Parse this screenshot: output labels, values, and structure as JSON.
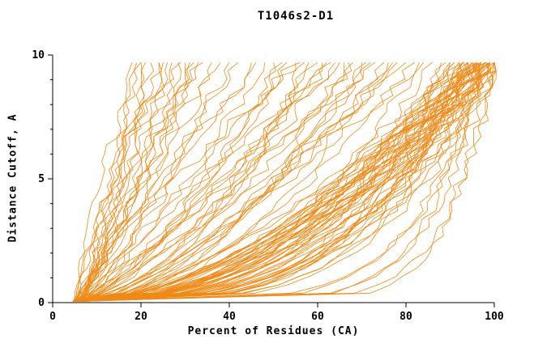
{
  "chart_data": {
    "type": "line",
    "title": "T1046s2-D1",
    "xlabel": "Percent of Residues (CA)",
    "ylabel": "Distance Cutoff, A",
    "xlim": [
      0,
      100
    ],
    "ylim": [
      0,
      10
    ],
    "x_ticks": [
      0,
      20,
      40,
      60,
      80,
      100
    ],
    "y_ticks": [
      0,
      5,
      10
    ],
    "y_minor_ticks": [
      1,
      2,
      3,
      4,
      6,
      7,
      8,
      9
    ],
    "line_color": "#EF8A17",
    "axis_color": "#000000",
    "y_start": 0.05,
    "y_top": 9.7,
    "x_start_range": [
      4.5,
      7.5
    ],
    "samples_per_curve": 30,
    "jitter_amplitude": 1.3,
    "jitter_seed": 1234,
    "curves_note": "each curve = [x_percent_reached_at_top_cutoff, shape_exponent]; x(t)=x0+(xend-x0)*t^shape, t=y/9.7",
    "curves": [
      [
        100,
        0.3
      ],
      [
        99,
        0.45
      ],
      [
        98,
        0.38
      ],
      [
        100,
        0.52
      ],
      [
        97,
        0.33
      ],
      [
        96,
        0.47
      ],
      [
        99,
        0.28
      ],
      [
        95,
        0.55
      ],
      [
        98,
        0.42
      ],
      [
        100,
        0.36
      ],
      [
        94,
        0.5
      ],
      [
        97,
        0.44
      ],
      [
        96,
        0.31
      ],
      [
        99,
        0.58
      ],
      [
        95,
        0.4
      ],
      [
        98,
        0.27
      ],
      [
        93,
        0.48
      ],
      [
        100,
        0.43
      ],
      [
        97,
        0.54
      ],
      [
        96,
        0.36
      ],
      [
        94,
        0.29
      ],
      [
        99,
        0.49
      ],
      [
        95,
        0.33
      ],
      [
        98,
        0.56
      ],
      [
        93,
        0.41
      ],
      [
        100,
        0.26
      ],
      [
        96,
        0.52
      ],
      [
        97,
        0.38
      ],
      [
        94,
        0.45
      ],
      [
        99,
        0.32
      ],
      [
        92,
        0.47
      ],
      [
        95,
        0.59
      ],
      [
        98,
        0.35
      ],
      [
        93,
        0.28
      ],
      [
        100,
        0.5
      ],
      [
        96,
        0.42
      ],
      [
        91,
        0.37
      ],
      [
        97,
        0.61
      ],
      [
        94,
        0.34
      ],
      [
        99,
        0.46
      ],
      [
        92,
        0.55
      ],
      [
        95,
        0.3
      ],
      [
        90,
        0.44
      ],
      [
        98,
        0.51
      ],
      [
        93,
        0.39
      ],
      [
        96,
        0.63
      ],
      [
        91,
        0.48
      ],
      [
        100,
        0.34
      ],
      [
        89,
        0.41
      ],
      [
        94,
        0.57
      ],
      [
        88,
        0.36
      ],
      [
        97,
        0.29
      ],
      [
        90,
        0.53
      ],
      [
        92,
        0.62
      ],
      [
        86,
        0.45
      ],
      [
        82,
        0.55
      ],
      [
        78,
        0.7
      ],
      [
        75,
        0.48
      ],
      [
        80,
        0.85
      ],
      [
        72,
        0.6
      ],
      [
        68,
        0.75
      ],
      [
        83,
        0.4
      ],
      [
        65,
        0.9
      ],
      [
        70,
        0.52
      ],
      [
        76,
        0.66
      ],
      [
        62,
        0.8
      ],
      [
        58,
        0.58
      ],
      [
        73,
        1.0
      ],
      [
        66,
        0.45
      ],
      [
        60,
        0.72
      ],
      [
        55,
        0.95
      ],
      [
        77,
        0.62
      ],
      [
        52,
        0.68
      ],
      [
        63,
        1.1
      ],
      [
        57,
        0.5
      ],
      [
        48,
        0.78
      ],
      [
        71,
        0.56
      ],
      [
        45,
        0.88
      ],
      [
        67,
        0.64
      ],
      [
        42,
        1.05
      ],
      [
        53,
        0.74
      ],
      [
        38,
        0.92
      ],
      [
        61,
        0.59
      ],
      [
        46,
        1.15
      ],
      [
        50,
        0.65
      ],
      [
        84,
        0.73
      ],
      [
        40,
        0.82
      ],
      [
        56,
        1.2
      ],
      [
        64,
        0.69
      ],
      [
        36,
        0.98
      ],
      [
        20,
        0.6
      ],
      [
        24,
        0.85
      ],
      [
        28,
        0.7
      ],
      [
        22,
        1.1
      ],
      [
        32,
        0.95
      ],
      [
        19,
        0.75
      ],
      [
        26,
        1.3
      ],
      [
        30,
        0.55
      ],
      [
        21,
        0.9
      ],
      [
        34,
        1.0
      ],
      [
        25,
        0.65
      ],
      [
        29,
        1.45
      ],
      [
        23,
        0.8
      ],
      [
        33,
        1.2
      ],
      [
        18,
        1.0
      ],
      [
        27,
        0.58
      ],
      [
        31,
        0.88
      ],
      [
        20,
        1.55
      ],
      [
        99,
        0.15
      ],
      [
        100,
        0.12
      ],
      [
        98,
        0.18
      ],
      [
        100,
        0.2
      ],
      [
        97,
        0.14
      ],
      [
        99,
        0.1
      ]
    ]
  }
}
